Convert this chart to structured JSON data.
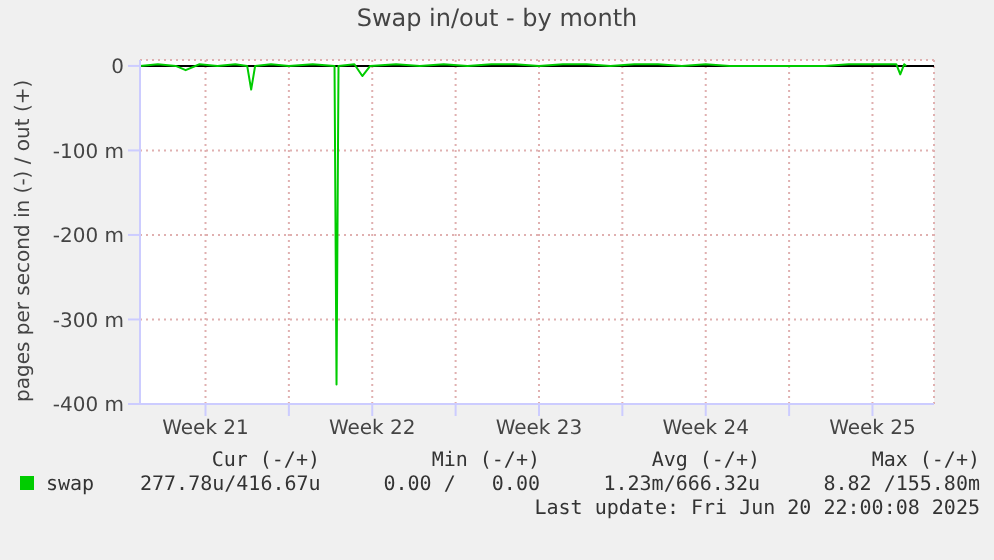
{
  "chart_data": {
    "type": "line",
    "title": "Swap in/out - by month",
    "ylabel": "pages per second in (-) / out (+)",
    "x": [
      "2025-05-19T18:00",
      "2025-05-20T12:00",
      "2025-05-21T06:00",
      "2025-05-21T16:00",
      "2025-05-22T06:00",
      "2025-05-23T00:00",
      "2025-05-23T18:00",
      "2025-05-24T06:00",
      "2025-05-24T10:00",
      "2025-05-24T14:00",
      "2025-05-25T06:00",
      "2025-05-26T00:00",
      "2025-05-27T00:00",
      "2025-05-27T22:00",
      "2025-05-28T00:00",
      "2025-05-28T02:00",
      "2025-05-28T18:00",
      "2025-05-29T02:00",
      "2025-05-29T10:00",
      "2025-05-30T12:00",
      "2025-05-31T12:00",
      "2025-06-01T12:00",
      "2025-06-02T12:00",
      "2025-06-03T12:00",
      "2025-06-04T12:00",
      "2025-06-05T12:00",
      "2025-06-06T12:00",
      "2025-06-07T12:00",
      "2025-06-08T12:00",
      "2025-06-09T12:00",
      "2025-06-10T12:00",
      "2025-06-11T12:00",
      "2025-06-12T12:00",
      "2025-06-13T12:00",
      "2025-06-14T12:00",
      "2025-06-15T12:00",
      "2025-06-16T12:00",
      "2025-06-17T12:00",
      "2025-06-18T12:00",
      "2025-06-19T12:00",
      "2025-06-20T12:00",
      "2025-06-20T16:00",
      "2025-06-20T20:00",
      "2025-06-20T22:00"
    ],
    "series": [
      {
        "name": "swap",
        "color": "#00cc00",
        "values": [
          0,
          2,
          0,
          -5,
          2,
          0,
          2,
          0,
          -28,
          0,
          2,
          0,
          2,
          0,
          -377,
          0,
          2,
          -12,
          0,
          2,
          0,
          2,
          0,
          2,
          2,
          0,
          2,
          2,
          0,
          2,
          2,
          0,
          2,
          0,
          0,
          0,
          0,
          0,
          2,
          2,
          2,
          -10,
          2,
          0
        ]
      }
    ],
    "xlim": [
      "2025-05-19T18:00",
      "2025-06-22T02:00"
    ],
    "xticks": [
      {
        "value": "2025-05-22T12:00",
        "label": "Week 21"
      },
      {
        "value": "2025-05-26T00:00",
        "label": null
      },
      {
        "value": "2025-05-29T12:00",
        "label": "Week 22"
      },
      {
        "value": "2025-06-02T00:00",
        "label": null
      },
      {
        "value": "2025-06-05T12:00",
        "label": "Week 23"
      },
      {
        "value": "2025-06-09T00:00",
        "label": null
      },
      {
        "value": "2025-06-12T12:00",
        "label": "Week 24"
      },
      {
        "value": "2025-06-16T00:00",
        "label": null
      },
      {
        "value": "2025-06-19T12:00",
        "label": "Week 25"
      }
    ],
    "ylim": [
      -400,
      7
    ],
    "yticks": [
      0,
      {
        "value": -100,
        "label": "-100 m"
      },
      {
        "value": -200,
        "label": "-200 m"
      },
      {
        "value": -300,
        "label": "-300 m"
      },
      {
        "value": -400,
        "label": "-400 m"
      }
    ],
    "ref_lines": [
      {
        "axis": "y",
        "value": 0,
        "color": "#000000"
      }
    ],
    "grid": true,
    "legend": "bottom",
    "annotations": [
      "Cur (-/+)",
      "Min (-/+)",
      "Avg (-/+)",
      "Max (-/+)",
      "277.78u/416.67u",
      "0.00 /   0.00",
      "1.23m/666.32u",
      "8.82 /155.80m",
      "Last update: Fri Jun 20 22:00:08 2025"
    ]
  }
}
